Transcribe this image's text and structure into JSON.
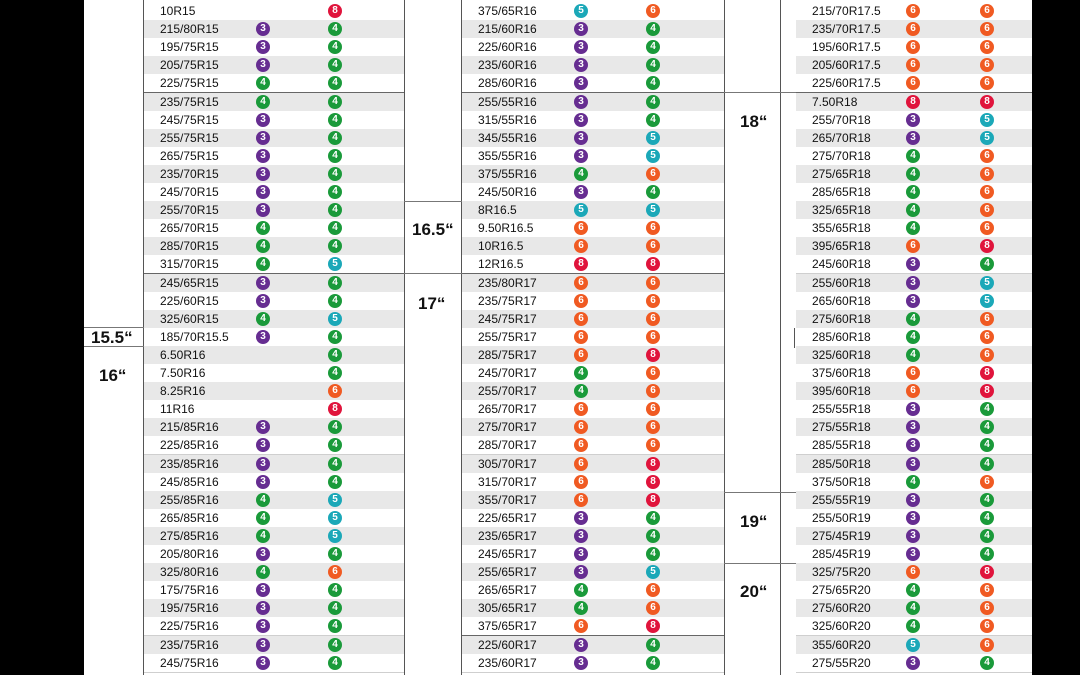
{
  "rim_labels": {
    "r155": "15.5“",
    "r16": "16“",
    "r165": "16.5“",
    "r17": "17“",
    "r18": "18“",
    "r19": "19“",
    "r20": "20“"
  },
  "badge_colors": {
    "3": "#662d91",
    "4": "#1a9a3a",
    "5": "#1ba8b8",
    "6": "#f05a22",
    "8": "#e0143c"
  },
  "columns": [
    {
      "rows": [
        {
          "size": "10R15",
          "a": null,
          "b": 8
        },
        {
          "size": "215/80R15",
          "a": 3,
          "b": 4
        },
        {
          "size": "195/75R15",
          "a": 3,
          "b": 4
        },
        {
          "size": "205/75R15",
          "a": 3,
          "b": 4
        },
        {
          "size": "225/75R15",
          "a": 4,
          "b": 4
        },
        {
          "size": "235/75R15",
          "a": 4,
          "b": 4
        },
        {
          "size": "245/75R15",
          "a": 3,
          "b": 4
        },
        {
          "size": "255/75R15",
          "a": 3,
          "b": 4
        },
        {
          "size": "265/75R15",
          "a": 3,
          "b": 4
        },
        {
          "size": "235/70R15",
          "a": 3,
          "b": 4
        },
        {
          "size": "245/70R15",
          "a": 3,
          "b": 4
        },
        {
          "size": "255/70R15",
          "a": 3,
          "b": 4
        },
        {
          "size": "265/70R15",
          "a": 4,
          "b": 4
        },
        {
          "size": "285/70R15",
          "a": 4,
          "b": 4
        },
        {
          "size": "315/70R15",
          "a": 4,
          "b": 5
        },
        {
          "size": "245/65R15",
          "a": 3,
          "b": 4
        },
        {
          "size": "225/60R15",
          "a": 3,
          "b": 4
        },
        {
          "size": "325/60R15",
          "a": 4,
          "b": 5
        },
        {
          "size": "185/70R15.5",
          "a": 3,
          "b": 4
        },
        {
          "size": "6.50R16",
          "a": null,
          "b": 4
        },
        {
          "size": "7.50R16",
          "a": null,
          "b": 4
        },
        {
          "size": "8.25R16",
          "a": null,
          "b": 6
        },
        {
          "size": "11R16",
          "a": null,
          "b": 8
        },
        {
          "size": "215/85R16",
          "a": 3,
          "b": 4
        },
        {
          "size": "225/85R16",
          "a": 3,
          "b": 4
        },
        {
          "size": "235/85R16",
          "a": 3,
          "b": 4
        },
        {
          "size": "245/85R16",
          "a": 3,
          "b": 4
        },
        {
          "size": "255/85R16",
          "a": 4,
          "b": 5
        },
        {
          "size": "265/85R16",
          "a": 4,
          "b": 5
        },
        {
          "size": "275/85R16",
          "a": 4,
          "b": 5
        },
        {
          "size": "205/80R16",
          "a": 3,
          "b": 4
        },
        {
          "size": "325/80R16",
          "a": 4,
          "b": 6
        },
        {
          "size": "175/75R16",
          "a": 3,
          "b": 4
        },
        {
          "size": "195/75R16",
          "a": 3,
          "b": 4
        },
        {
          "size": "225/75R16",
          "a": 3,
          "b": 4
        },
        {
          "size": "235/75R16",
          "a": 3,
          "b": 4
        },
        {
          "size": "245/75R16",
          "a": 3,
          "b": 4
        }
      ]
    },
    {
      "rows": [
        {
          "size": "375/65R16",
          "a": 5,
          "b": 6
        },
        {
          "size": "215/60R16",
          "a": 3,
          "b": 4
        },
        {
          "size": "225/60R16",
          "a": 3,
          "b": 4
        },
        {
          "size": "235/60R16",
          "a": 3,
          "b": 4
        },
        {
          "size": "285/60R16",
          "a": 3,
          "b": 4
        },
        {
          "size": "255/55R16",
          "a": 3,
          "b": 4
        },
        {
          "size": "315/55R16",
          "a": 3,
          "b": 4
        },
        {
          "size": "345/55R16",
          "a": 3,
          "b": 5
        },
        {
          "size": "355/55R16",
          "a": 3,
          "b": 5
        },
        {
          "size": "375/55R16",
          "a": 4,
          "b": 6
        },
        {
          "size": "245/50R16",
          "a": 3,
          "b": 4
        },
        {
          "size": "8R16.5",
          "a": 5,
          "b": 5
        },
        {
          "size": "9.50R16.5",
          "a": 6,
          "b": 6
        },
        {
          "size": "10R16.5",
          "a": 6,
          "b": 6
        },
        {
          "size": "12R16.5",
          "a": 8,
          "b": 8
        },
        {
          "size": "235/80R17",
          "a": 6,
          "b": 6
        },
        {
          "size": "235/75R17",
          "a": 6,
          "b": 6
        },
        {
          "size": "245/75R17",
          "a": 6,
          "b": 6
        },
        {
          "size": "255/75R17",
          "a": 6,
          "b": 6
        },
        {
          "size": "285/75R17",
          "a": 6,
          "b": 8
        },
        {
          "size": "245/70R17",
          "a": 4,
          "b": 6
        },
        {
          "size": "255/70R17",
          "a": 4,
          "b": 6
        },
        {
          "size": "265/70R17",
          "a": 6,
          "b": 6
        },
        {
          "size": "275/70R17",
          "a": 6,
          "b": 6
        },
        {
          "size": "285/70R17",
          "a": 6,
          "b": 6
        },
        {
          "size": "305/70R17",
          "a": 6,
          "b": 8
        },
        {
          "size": "315/70R17",
          "a": 6,
          "b": 8
        },
        {
          "size": "355/70R17",
          "a": 6,
          "b": 8
        },
        {
          "size": "225/65R17",
          "a": 3,
          "b": 4
        },
        {
          "size": "235/65R17",
          "a": 3,
          "b": 4
        },
        {
          "size": "245/65R17",
          "a": 3,
          "b": 4
        },
        {
          "size": "255/65R17",
          "a": 3,
          "b": 5
        },
        {
          "size": "265/65R17",
          "a": 4,
          "b": 6
        },
        {
          "size": "305/65R17",
          "a": 4,
          "b": 6
        },
        {
          "size": "375/65R17",
          "a": 6,
          "b": 8
        },
        {
          "size": "225/60R17",
          "a": 3,
          "b": 4
        },
        {
          "size": "235/60R17",
          "a": 3,
          "b": 4
        }
      ]
    },
    {
      "rows": [
        {
          "size": "215/70R17.5",
          "a": 6,
          "b": 6
        },
        {
          "size": "235/70R17.5",
          "a": 6,
          "b": 6
        },
        {
          "size": "195/60R17.5",
          "a": 6,
          "b": 6
        },
        {
          "size": "205/60R17.5",
          "a": 6,
          "b": 6
        },
        {
          "size": "225/60R17.5",
          "a": 6,
          "b": 6
        },
        {
          "size": "7.50R18",
          "a": 8,
          "b": 8
        },
        {
          "size": "255/70R18",
          "a": 3,
          "b": 5
        },
        {
          "size": "265/70R18",
          "a": 3,
          "b": 5
        },
        {
          "size": "275/70R18",
          "a": 4,
          "b": 6
        },
        {
          "size": "275/65R18",
          "a": 4,
          "b": 6
        },
        {
          "size": "285/65R18",
          "a": 4,
          "b": 6
        },
        {
          "size": "325/65R18",
          "a": 4,
          "b": 6
        },
        {
          "size": "355/65R18",
          "a": 4,
          "b": 6
        },
        {
          "size": "395/65R18",
          "a": 6,
          "b": 8
        },
        {
          "size": "245/60R18",
          "a": 3,
          "b": 4
        },
        {
          "size": "255/60R18",
          "a": 3,
          "b": 5
        },
        {
          "size": "265/60R18",
          "a": 3,
          "b": 5
        },
        {
          "size": "275/60R18",
          "a": 4,
          "b": 6
        },
        {
          "size": "285/60R18",
          "a": 4,
          "b": 6
        },
        {
          "size": "325/60R18",
          "a": 4,
          "b": 6
        },
        {
          "size": "375/60R18",
          "a": 6,
          "b": 8
        },
        {
          "size": "395/60R18",
          "a": 6,
          "b": 8
        },
        {
          "size": "255/55R18",
          "a": 3,
          "b": 4
        },
        {
          "size": "275/55R18",
          "a": 3,
          "b": 4
        },
        {
          "size": "285/55R18",
          "a": 3,
          "b": 4
        },
        {
          "size": "285/50R18",
          "a": 3,
          "b": 4
        },
        {
          "size": "375/50R18",
          "a": 4,
          "b": 6
        },
        {
          "size": "255/55R19",
          "a": 3,
          "b": 4
        },
        {
          "size": "255/50R19",
          "a": 3,
          "b": 4
        },
        {
          "size": "275/45R19",
          "a": 3,
          "b": 4
        },
        {
          "size": "285/45R19",
          "a": 3,
          "b": 4
        },
        {
          "size": "325/75R20",
          "a": 6,
          "b": 8
        },
        {
          "size": "275/65R20",
          "a": 4,
          "b": 6
        },
        {
          "size": "275/60R20",
          "a": 4,
          "b": 6
        },
        {
          "size": "325/60R20",
          "a": 4,
          "b": 6
        },
        {
          "size": "355/60R20",
          "a": 5,
          "b": 6
        },
        {
          "size": "275/55R20",
          "a": 3,
          "b": 4
        }
      ]
    }
  ]
}
